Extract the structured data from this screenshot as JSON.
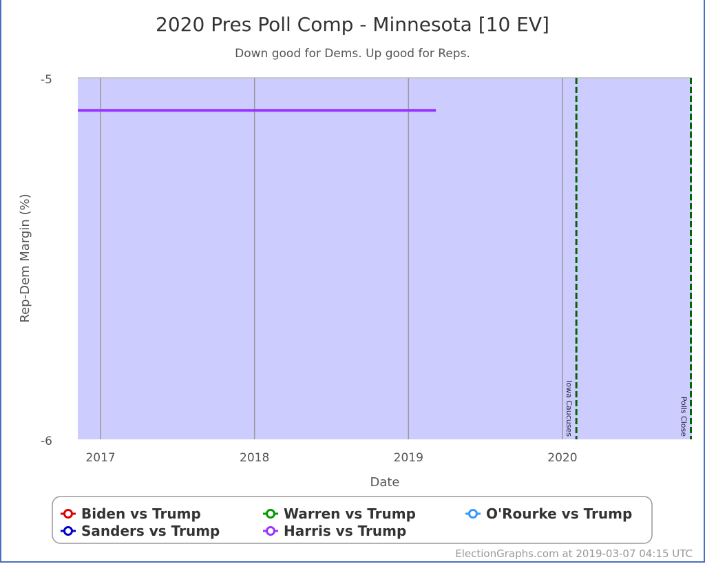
{
  "chart_data": {
    "type": "line",
    "title": "2020 Pres Poll Comp - Minnesota [10 EV]",
    "subtitle": "Down good for Dems. Up good for Reps.",
    "xlabel": "Date",
    "ylabel": "Rep-Dem Margin (%)",
    "xlim": [
      "2016-11-08",
      "2020-11-03"
    ],
    "ylim": [
      -6,
      -5
    ],
    "y_reversed": true,
    "x_ticks": [
      "2017",
      "2018",
      "2019",
      "2020"
    ],
    "y_ticks": [
      "-5",
      "-6"
    ],
    "plot_background": "#ccccff",
    "grid": "vertical",
    "series": [
      {
        "name": "Biden vs Trump",
        "color": "#dd0000",
        "points": []
      },
      {
        "name": "Sanders vs Trump",
        "color": "#0000cc",
        "points": []
      },
      {
        "name": "Warren vs Trump",
        "color": "#009900",
        "points": []
      },
      {
        "name": "Harris vs Trump",
        "color": "#9933ff",
        "points": [
          [
            "2016-11-08",
            -5.09
          ],
          [
            "2019-03-07",
            -5.09
          ]
        ]
      },
      {
        "name": "O'Rourke vs Trump",
        "color": "#3399ff",
        "points": []
      }
    ],
    "annotations": [
      {
        "label": "Iowa Caucuses",
        "date": "2020-02-03",
        "color": "#006600"
      },
      {
        "label": "Polls Close",
        "date": "2020-11-03",
        "color": "#006600"
      }
    ],
    "legend_position": "bottom",
    "credit": "ElectionGraphs.com at 2019-03-07 04:15 UTC"
  }
}
